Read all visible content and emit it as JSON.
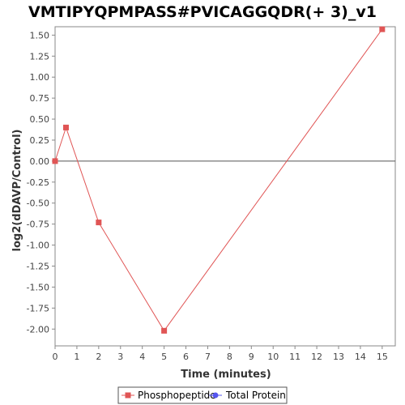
{
  "chart_data": {
    "type": "line",
    "title": "VMTIPYQPMPASS#PVICAGGQDR(+ 3)_v1",
    "xlabel": "Time (minutes)",
    "ylabel": "log2(dDAVP/Control)",
    "xlim": [
      0,
      15.6
    ],
    "ylim": [
      -2.2,
      1.6
    ],
    "x_ticks": [
      0,
      1,
      2,
      3,
      4,
      5,
      6,
      7,
      8,
      9,
      10,
      11,
      12,
      13,
      14,
      15
    ],
    "y_ticks": [
      1.5,
      1.25,
      1.0,
      0.75,
      0.5,
      0.25,
      0.0,
      -0.25,
      -0.5,
      -0.75,
      -1.0,
      -1.25,
      -1.5,
      -1.75,
      -2.0
    ],
    "y_tick_labels": [
      "1.50",
      "1.25",
      "1.00",
      "0.75",
      "0.50",
      "0.25",
      "0.00",
      "-0.25",
      "-0.50",
      "-0.75",
      "-1.00",
      "-1.25",
      "-1.50",
      "-1.75",
      "-2.00"
    ],
    "zero_line": true,
    "grid": false,
    "legend_position": "bottom",
    "series": [
      {
        "name": "Phosphopeptide",
        "color": "#e05555",
        "marker": "square",
        "x": [
          0,
          0.5,
          2,
          5,
          15
        ],
        "y": [
          0.0,
          0.4,
          -0.73,
          -2.02,
          1.57
        ]
      },
      {
        "name": "Total Protein",
        "color": "#5555ee",
        "marker": "circle",
        "x": [],
        "y": []
      }
    ]
  }
}
